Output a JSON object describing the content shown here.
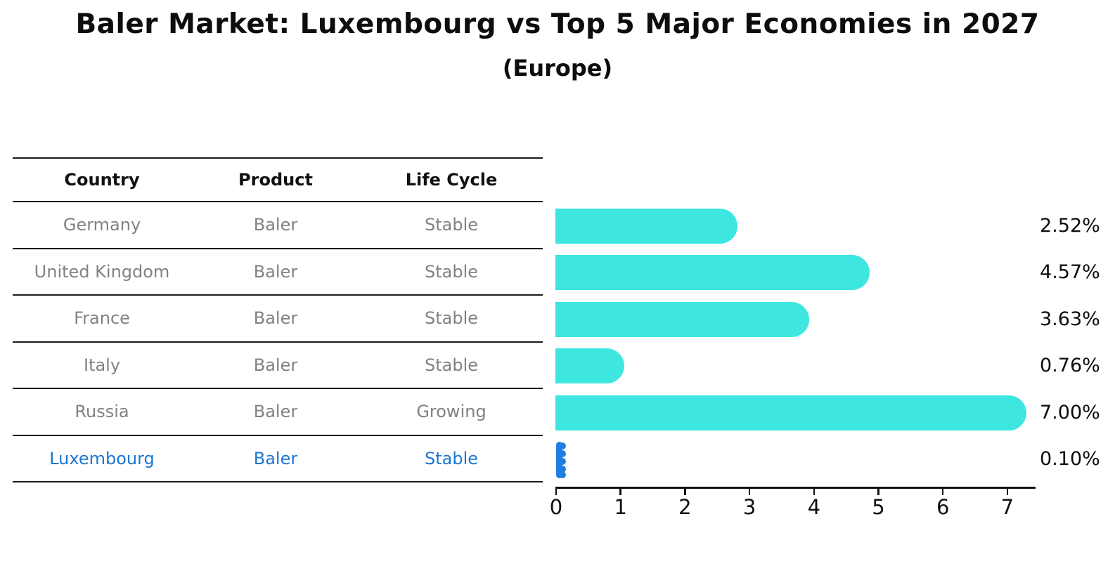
{
  "title": "Baler Market: Luxembourg vs Top 5 Major Economies in 2027",
  "subtitle": "(Europe)",
  "table": {
    "headers": [
      "Country",
      "Product",
      "Life Cycle"
    ],
    "rows": [
      {
        "country": "Germany",
        "product": "Baler",
        "life_cycle": "Stable",
        "highlight": false
      },
      {
        "country": "United Kingdom",
        "product": "Baler",
        "life_cycle": "Stable",
        "highlight": false
      },
      {
        "country": "France",
        "product": "Baler",
        "life_cycle": "Stable",
        "highlight": false
      },
      {
        "country": "Italy",
        "product": "Baler",
        "life_cycle": "Stable",
        "highlight": false
      },
      {
        "country": "Russia",
        "product": "Baler",
        "life_cycle": "Growing",
        "highlight": false
      },
      {
        "country": "Luxembourg",
        "product": "Baler",
        "life_cycle": "Stable",
        "highlight": true
      }
    ]
  },
  "chart_data": {
    "type": "bar",
    "orientation": "horizontal",
    "title": "Baler Market: Luxembourg vs Top 5 Major Economies in 2027",
    "subtitle": "(Europe)",
    "categories": [
      "Germany",
      "United Kingdom",
      "France",
      "Italy",
      "Russia",
      "Luxembourg"
    ],
    "values": [
      2.52,
      4.57,
      3.63,
      0.76,
      7.0,
      0.1
    ],
    "value_labels": [
      "2.52%",
      "4.57%",
      "3.63%",
      "0.76%",
      "7.00%",
      "0.10%"
    ],
    "unit": "%",
    "x_ticks": [
      "0",
      "1",
      "2",
      "3",
      "4",
      "5",
      "6",
      "7"
    ],
    "xlim": [
      0,
      7.4
    ],
    "grid": false,
    "legend": false,
    "bar_color": "#3ee6e0",
    "highlight_bar_color": "#1e7fe0"
  },
  "colors": {
    "bar_cyan": "#3ee6e0",
    "highlight_blue": "#1e7fe0",
    "highlight_text_blue": "#1b76d2",
    "table_text_gray": "#828282",
    "axis_black": "#111111"
  }
}
